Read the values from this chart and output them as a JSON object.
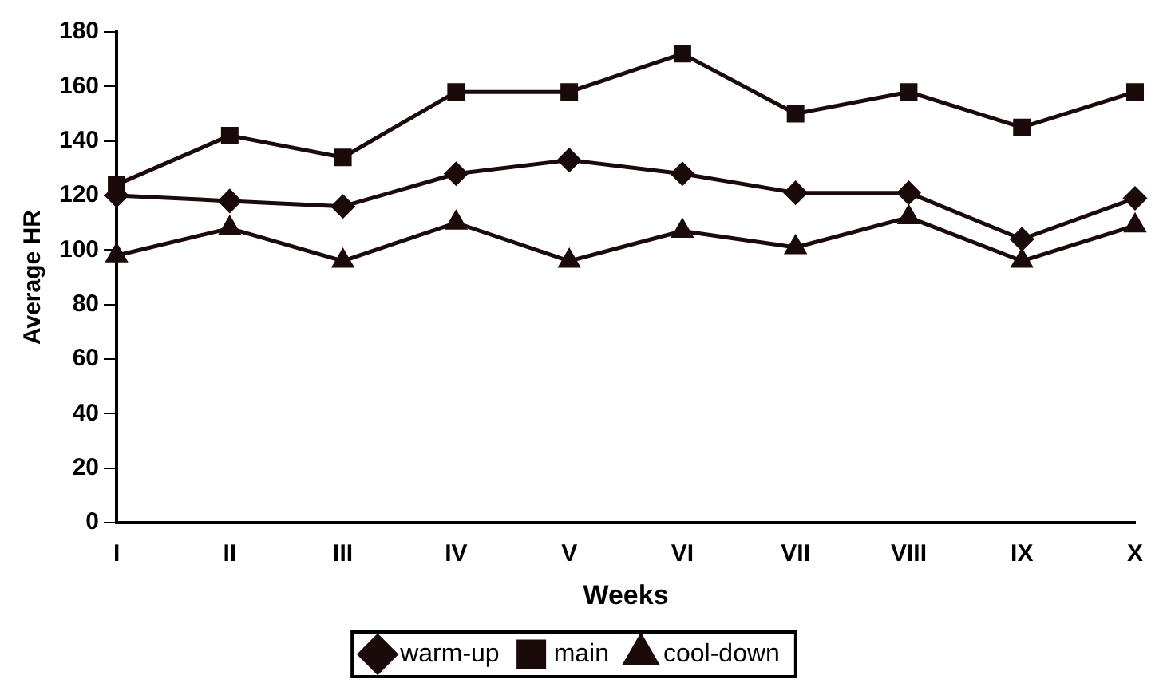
{
  "chart_data": {
    "type": "line",
    "xlabel": "Weeks",
    "ylabel": "Average HR",
    "categories": [
      "I",
      "II",
      "III",
      "IV",
      "V",
      "VI",
      "VII",
      "VIII",
      "IX",
      "X"
    ],
    "series": [
      {
        "name": "warm-up",
        "color": "#1a0a0a",
        "marker": "diamond",
        "values": [
          120,
          118,
          116,
          128,
          133,
          128,
          121,
          121,
          104,
          119
        ]
      },
      {
        "name": "main",
        "color": "#1a0a0a",
        "marker": "square",
        "values": [
          124,
          142,
          134,
          158,
          158,
          172,
          150,
          158,
          145,
          158
        ]
      },
      {
        "name": "cool-down",
        "color": "#1a0a0a",
        "marker": "triangle",
        "values": [
          98,
          108,
          96,
          110,
          96,
          107,
          101,
          112,
          96,
          109
        ]
      }
    ],
    "ylim": [
      0,
      180
    ],
    "yticks": [
      0,
      20,
      40,
      60,
      80,
      100,
      120,
      140,
      160,
      180
    ],
    "grid": false,
    "legend": "bottom"
  }
}
